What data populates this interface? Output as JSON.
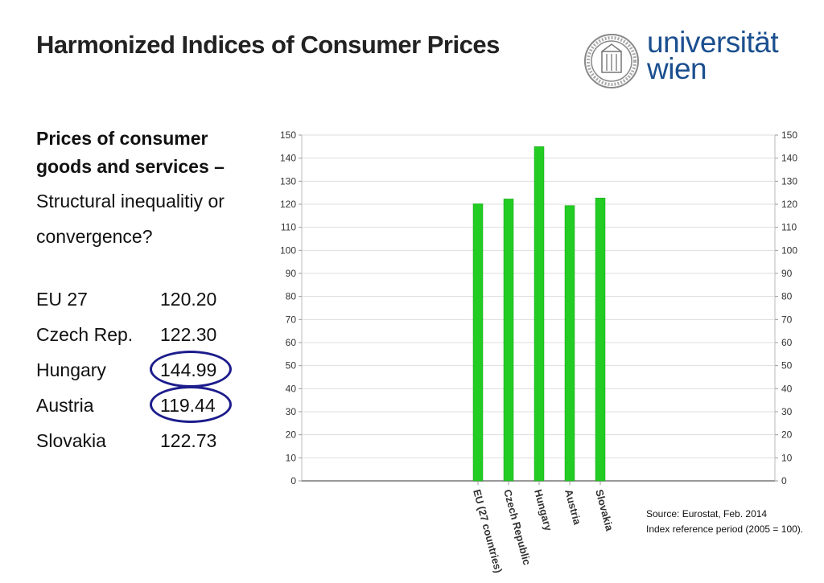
{
  "page": {
    "title": "Harmonized Indices of Consumer Prices",
    "heading": "Prices of consumer goods and services –",
    "subtitle": "Structural inequalitiy or convergence?",
    "rows": [
      {
        "country": "EU 27",
        "value": "120.20"
      },
      {
        "country": "Czech Rep.",
        "value": "122.30"
      },
      {
        "country": "Hungary",
        "value": "144.99"
      },
      {
        "country": "Austria",
        "value": "119.44"
      },
      {
        "country": "Slovakia",
        "value": "122.73"
      }
    ],
    "source": "Source: Eurostat, Feb. 2014",
    "note": "Index reference period (2005 = 100)."
  },
  "logo": {
    "line1": "universität",
    "line2": "wien",
    "icon": "university-seal-icon",
    "color": "#1b4f8f"
  },
  "highlight_color": "#1c1c8c",
  "chart_data": {
    "type": "bar",
    "categories": [
      "EU (27 countries)",
      "Czech Republic",
      "Hungary",
      "Austria",
      "Slovakia"
    ],
    "values": [
      120.2,
      122.3,
      144.99,
      119.44,
      122.73
    ],
    "ylim": [
      0,
      150
    ],
    "yticks": [
      0,
      10,
      20,
      30,
      40,
      50,
      60,
      70,
      80,
      90,
      100,
      110,
      120,
      130,
      140,
      150
    ],
    "grid": true,
    "right_axis": true,
    "bar_color": "#22cc22"
  }
}
